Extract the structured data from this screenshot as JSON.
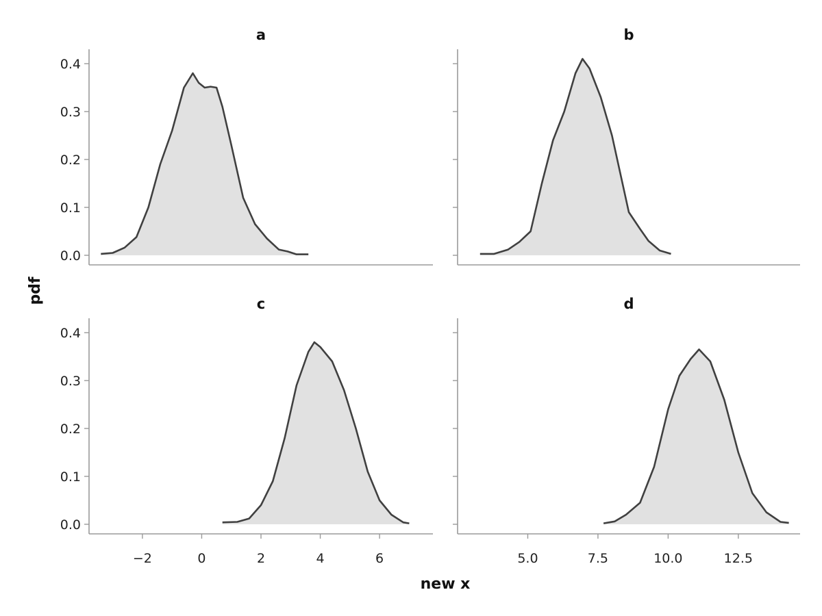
{
  "figure": {
    "xlabel": "new x",
    "ylabel": "pdf",
    "colors": {
      "fill": "#e1e1e1",
      "line": "#404040",
      "axis": "#9a9a9a",
      "text": "#222222"
    }
  },
  "chart_data": [
    {
      "type": "area",
      "title": "a",
      "xlim": [
        -3.8,
        7.8
      ],
      "ylim": [
        -0.02,
        0.43
      ],
      "xticks": [],
      "yticks": [
        0.0,
        0.1,
        0.2,
        0.3,
        0.4
      ],
      "yticklabels": [
        "0.0",
        "0.1",
        "0.2",
        "0.3",
        "0.4"
      ],
      "x": [
        -3.4,
        -3.0,
        -2.6,
        -2.2,
        -1.8,
        -1.4,
        -1.0,
        -0.6,
        -0.3,
        -0.1,
        0.1,
        0.3,
        0.5,
        0.7,
        1.0,
        1.4,
        1.8,
        2.2,
        2.6,
        2.9,
        3.2,
        3.6
      ],
      "y": [
        0.003,
        0.005,
        0.016,
        0.038,
        0.1,
        0.19,
        0.26,
        0.35,
        0.38,
        0.36,
        0.35,
        0.352,
        0.35,
        0.31,
        0.23,
        0.12,
        0.065,
        0.035,
        0.012,
        0.008,
        0.002,
        0.002
      ]
    },
    {
      "type": "area",
      "title": "b",
      "xlim": [
        2.5,
        14.7
      ],
      "ylim": [
        -0.02,
        0.43
      ],
      "xticks": [],
      "yticks": [
        0.0,
        0.1,
        0.2,
        0.3,
        0.4
      ],
      "yticklabels": [],
      "x": [
        3.3,
        3.8,
        4.3,
        4.7,
        5.1,
        5.5,
        5.9,
        6.3,
        6.7,
        6.95,
        7.2,
        7.6,
        8.0,
        8.3,
        8.6,
        9.0,
        9.3,
        9.7,
        10.1
      ],
      "y": [
        0.003,
        0.003,
        0.012,
        0.028,
        0.05,
        0.15,
        0.24,
        0.3,
        0.38,
        0.41,
        0.39,
        0.33,
        0.25,
        0.17,
        0.09,
        0.055,
        0.03,
        0.01,
        0.003
      ]
    },
    {
      "type": "area",
      "title": "c",
      "xlim": [
        -3.8,
        7.8
      ],
      "ylim": [
        -0.02,
        0.43
      ],
      "xticks": [
        -2,
        0,
        2,
        4,
        6
      ],
      "xticklabels": [
        "−2",
        "0",
        "2",
        "4",
        "6"
      ],
      "yticks": [
        0.0,
        0.1,
        0.2,
        0.3,
        0.4
      ],
      "yticklabels": [
        "0.0",
        "0.1",
        "0.2",
        "0.3",
        "0.4"
      ],
      "x": [
        0.7,
        1.2,
        1.6,
        2.0,
        2.4,
        2.8,
        3.2,
        3.6,
        3.8,
        4.0,
        4.4,
        4.8,
        5.2,
        5.6,
        6.0,
        6.4,
        6.8,
        7.0
      ],
      "y": [
        0.004,
        0.005,
        0.012,
        0.04,
        0.09,
        0.18,
        0.29,
        0.36,
        0.38,
        0.37,
        0.34,
        0.28,
        0.2,
        0.11,
        0.05,
        0.02,
        0.004,
        0.002
      ]
    },
    {
      "type": "area",
      "title": "d",
      "xlim": [
        2.5,
        14.7
      ],
      "ylim": [
        -0.02,
        0.43
      ],
      "xticks": [
        5.0,
        7.5,
        10.0,
        12.5
      ],
      "xticklabels": [
        "5.0",
        "7.5",
        "10.0",
        "12.5"
      ],
      "yticks": [
        0.0,
        0.1,
        0.2,
        0.3,
        0.4
      ],
      "yticklabels": [],
      "x": [
        7.7,
        8.1,
        8.5,
        9.0,
        9.5,
        10.0,
        10.4,
        10.8,
        11.1,
        11.5,
        12.0,
        12.5,
        13.0,
        13.5,
        14.0,
        14.3
      ],
      "y": [
        0.002,
        0.006,
        0.02,
        0.045,
        0.12,
        0.24,
        0.31,
        0.345,
        0.365,
        0.34,
        0.26,
        0.15,
        0.065,
        0.025,
        0.005,
        0.003
      ]
    }
  ]
}
